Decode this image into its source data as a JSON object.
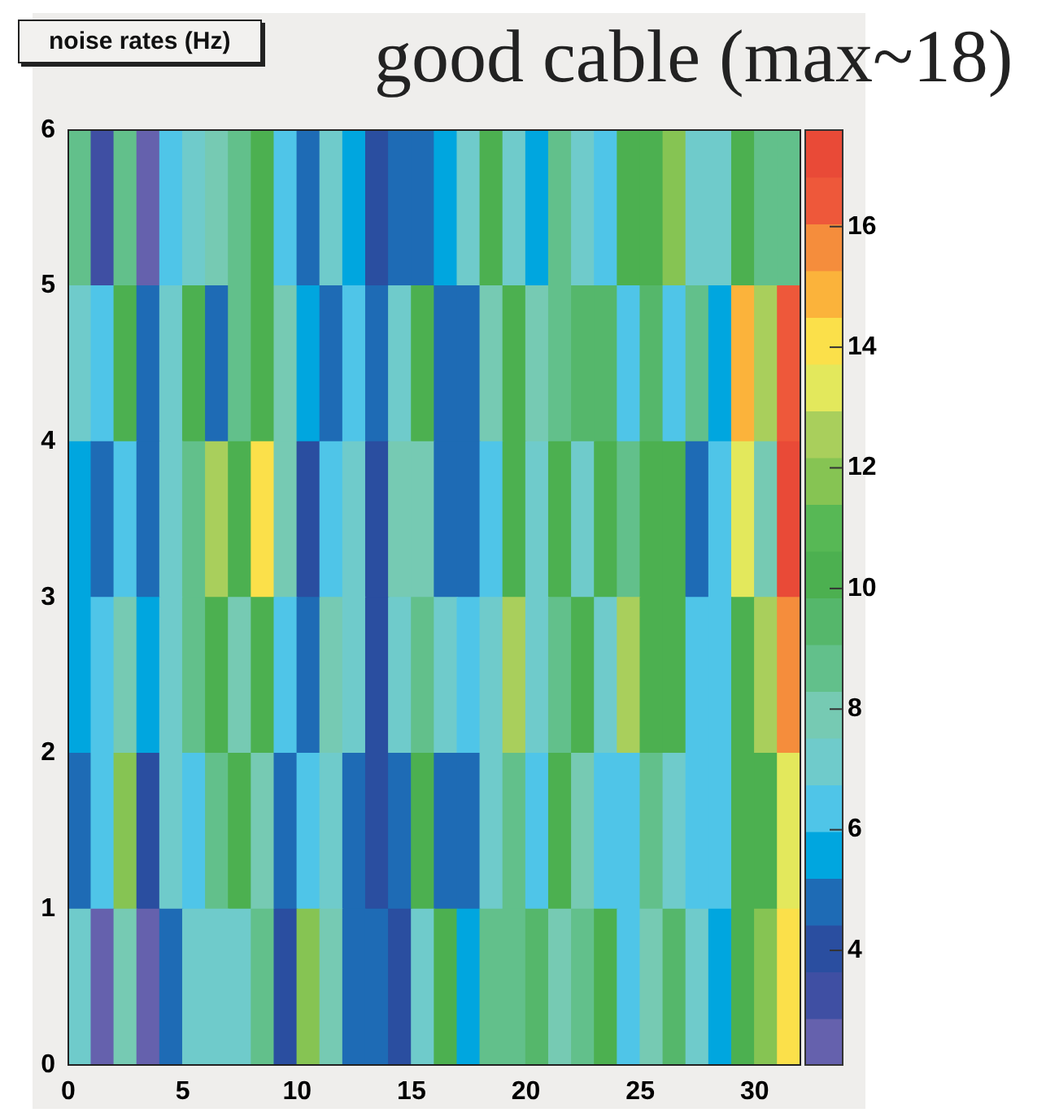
{
  "chart_data": {
    "type": "heatmap",
    "title": "noise rates (Hz)",
    "subtitle": "good cable (max~18)",
    "x": [
      0.5,
      1.5,
      2.5,
      3.5,
      4.5,
      5.5,
      6.5,
      7.5,
      8.5,
      9.5,
      10.5,
      11.5,
      12.5,
      13.5,
      14.5,
      15.5,
      16.5,
      17.5,
      18.5,
      19.5,
      20.5,
      21.5,
      22.5,
      23.5,
      24.5,
      25.5,
      26.5,
      27.5,
      28.5,
      29.5,
      30.5,
      31.5
    ],
    "y": [
      5.5,
      4.5,
      3.5,
      2.5,
      1.5,
      0.5
    ],
    "xlim": [
      0,
      32
    ],
    "xticks": [
      0,
      5,
      10,
      15,
      20,
      25,
      30
    ],
    "ylim": [
      0,
      6
    ],
    "yticks": [
      0,
      1,
      2,
      3,
      4,
      5,
      6
    ],
    "clim": [
      2.1,
      17.6
    ],
    "cticks": [
      4,
      6,
      8,
      10,
      12,
      14,
      16
    ],
    "cells": [
      [
        8.6,
        3.2,
        8.6,
        2.4,
        6.3,
        7.1,
        7.9,
        8.6,
        10.2,
        6.3,
        4.8,
        7.1,
        5.5,
        4.0,
        4.8,
        4.8,
        5.5,
        7.1,
        10.2,
        7.1,
        5.5,
        8.6,
        7.1,
        6.3,
        10.2,
        10.2,
        11.7,
        7.1,
        7.1,
        10.2,
        8.6,
        8.6
      ],
      [
        7.1,
        6.3,
        10.2,
        4.8,
        7.1,
        10.2,
        4.8,
        8.6,
        10.2,
        7.9,
        5.5,
        4.8,
        6.3,
        4.8,
        7.1,
        10.2,
        4.8,
        4.8,
        7.9,
        10.2,
        7.9,
        8.6,
        9.4,
        9.4,
        6.3,
        9.4,
        6.3,
        8.6,
        5.5,
        14.8,
        12.5,
        16.4
      ],
      [
        5.5,
        4.8,
        6.3,
        4.8,
        7.1,
        8.6,
        12.5,
        10.2,
        14.1,
        7.9,
        4.0,
        6.3,
        7.1,
        4.0,
        7.9,
        7.9,
        4.8,
        4.8,
        6.3,
        10.2,
        7.1,
        10.2,
        7.1,
        10.2,
        8.6,
        10.2,
        10.2,
        4.8,
        6.3,
        13.3,
        7.9,
        17.2
      ],
      [
        5.5,
        6.3,
        7.9,
        5.5,
        7.1,
        8.6,
        10.2,
        7.9,
        10.2,
        6.3,
        4.8,
        7.9,
        7.1,
        4.0,
        7.1,
        8.6,
        7.1,
        6.3,
        7.1,
        12.5,
        7.1,
        8.6,
        10.2,
        7.1,
        12.5,
        10.2,
        10.2,
        6.3,
        6.3,
        10.2,
        12.5,
        15.6
      ],
      [
        4.8,
        6.3,
        11.7,
        4.0,
        7.1,
        6.3,
        8.6,
        10.2,
        7.9,
        4.8,
        6.3,
        7.1,
        4.8,
        4.0,
        4.8,
        10.2,
        4.8,
        4.8,
        7.1,
        8.6,
        6.3,
        10.2,
        7.9,
        6.3,
        6.3,
        8.6,
        7.1,
        6.3,
        6.3,
        10.2,
        10.2,
        13.3
      ],
      [
        7.1,
        2.4,
        7.9,
        2.4,
        4.8,
        7.1,
        7.1,
        7.1,
        8.6,
        4.0,
        11.7,
        7.9,
        4.8,
        4.8,
        4.0,
        7.1,
        10.2,
        5.5,
        8.6,
        8.6,
        9.4,
        7.9,
        8.6,
        10.2,
        6.3,
        7.9,
        9.4,
        7.1,
        5.5,
        10.2,
        11.7,
        14.1
      ]
    ]
  }
}
